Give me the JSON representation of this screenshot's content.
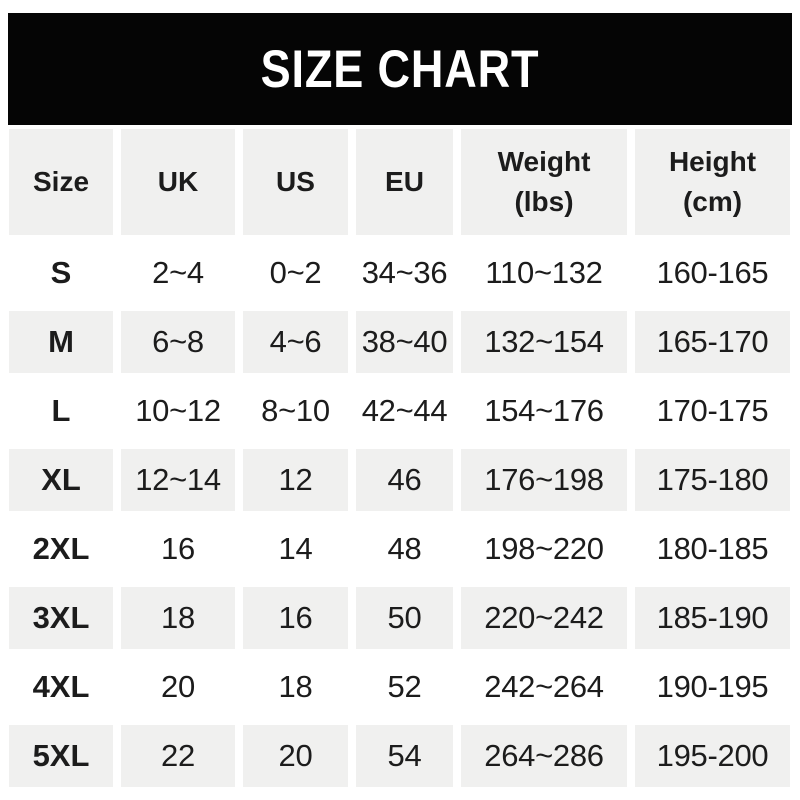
{
  "banner": {
    "title": "SIZE CHART"
  },
  "colors": {
    "banner_bg": "#050505",
    "banner_text": "#ffffff",
    "stripe_bg": "#f0f0ef",
    "text_color": "#1c1c1c"
  },
  "chart_data": {
    "type": "table",
    "title": "SIZE CHART",
    "layout": {
      "stripe_pattern": "header gray, then data rows alternate white/gray starting white",
      "grid": "no borders, white gutters between cells"
    },
    "columns": [
      {
        "line1": "Size",
        "line2": ""
      },
      {
        "line1": "UK",
        "line2": ""
      },
      {
        "line1": "US",
        "line2": ""
      },
      {
        "line1": "EU",
        "line2": ""
      },
      {
        "line1": "Weight",
        "line2": "(lbs)"
      },
      {
        "line1": "Height",
        "line2": "(cm)"
      }
    ],
    "rows": [
      {
        "size": "S",
        "uk": "2~4",
        "us": "0~2",
        "eu": "34~36",
        "weight": "110~132",
        "height": "160-165"
      },
      {
        "size": "M",
        "uk": "6~8",
        "us": "4~6",
        "eu": "38~40",
        "weight": "132~154",
        "height": "165-170"
      },
      {
        "size": "L",
        "uk": "10~12",
        "us": "8~10",
        "eu": "42~44",
        "weight": "154~176",
        "height": "170-175"
      },
      {
        "size": "XL",
        "uk": "12~14",
        "us": "12",
        "eu": "46",
        "weight": "176~198",
        "height": "175-180"
      },
      {
        "size": "2XL",
        "uk": "16",
        "us": "14",
        "eu": "48",
        "weight": "198~220",
        "height": "180-185"
      },
      {
        "size": "3XL",
        "uk": "18",
        "us": "16",
        "eu": "50",
        "weight": "220~242",
        "height": "185-190"
      },
      {
        "size": "4XL",
        "uk": "20",
        "us": "18",
        "eu": "52",
        "weight": "242~264",
        "height": "190-195"
      },
      {
        "size": "5XL",
        "uk": "22",
        "us": "20",
        "eu": "54",
        "weight": "264~286",
        "height": "195-200"
      }
    ]
  }
}
